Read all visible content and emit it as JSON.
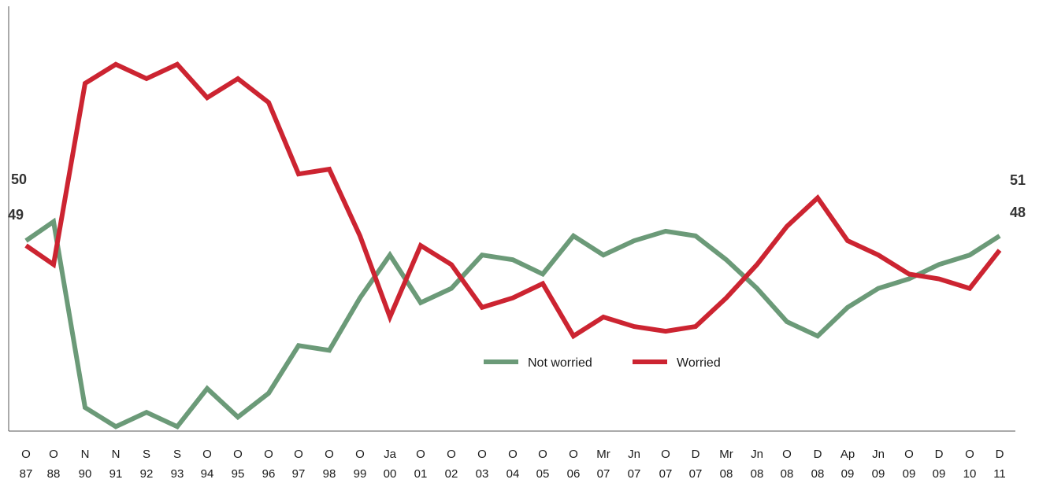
{
  "chart_data": {
    "type": "line",
    "x_top": [
      "O",
      "O",
      "N",
      "N",
      "S",
      "S",
      "O",
      "O",
      "O",
      "O",
      "O",
      "O",
      "Ja",
      "O",
      "O",
      "O",
      "O",
      "O",
      "O",
      "Mr",
      "Jn",
      "O",
      "D",
      "Mr",
      "Jn",
      "O",
      "D",
      "Ap",
      "Jn",
      "O",
      "D",
      "O",
      "D"
    ],
    "x_bottom": [
      "87",
      "88",
      "90",
      "91",
      "92",
      "93",
      "94",
      "95",
      "96",
      "97",
      "98",
      "99",
      "00",
      "01",
      "02",
      "03",
      "04",
      "05",
      "06",
      "07",
      "07",
      "07",
      "07",
      "08",
      "08",
      "08",
      "08",
      "09",
      "09",
      "09",
      "09",
      "10",
      "11"
    ],
    "series": [
      {
        "name": "Not worried",
        "color": "#6b9a78",
        "values": [
          50,
          54,
          15,
          11,
          14,
          11,
          19,
          13,
          18,
          28,
          27,
          38,
          47,
          37,
          40,
          47,
          46,
          43,
          51,
          47,
          50,
          52,
          51,
          46,
          40,
          33,
          30,
          36,
          40,
          42,
          45,
          47,
          51
        ]
      },
      {
        "name": "Worried",
        "color": "#cc2431",
        "values": [
          49,
          45,
          83,
          87,
          84,
          87,
          80,
          84,
          79,
          64,
          65,
          51,
          34,
          49,
          45,
          36,
          38,
          41,
          30,
          34,
          32,
          31,
          32,
          38,
          45,
          53,
          59,
          50,
          47,
          43,
          42,
          40,
          48
        ]
      }
    ],
    "end_labels": {
      "start_top": "50",
      "start_bottom": "49",
      "end_top": "51",
      "end_bottom": "48"
    },
    "legend": {
      "placement": "bottom-center",
      "items": [
        "Not worried",
        "Worried"
      ]
    },
    "ylim": [
      0,
      100
    ],
    "grid": false
  }
}
